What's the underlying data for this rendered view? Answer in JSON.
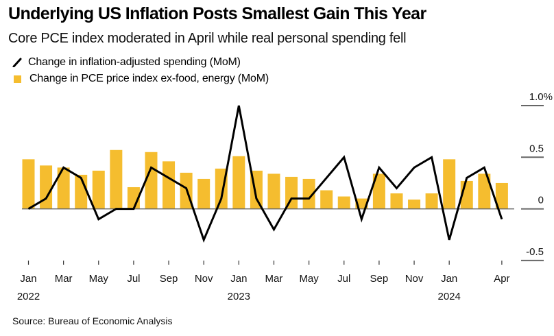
{
  "header": {
    "title": "Underlying US Inflation Posts Smallest Gain This Year",
    "subtitle": "Core PCE index moderated in April while real personal spending fell"
  },
  "legend": [
    {
      "label": "Change in inflation-adjusted spending (MoM)",
      "icon": "line-slash-icon",
      "color": "#000000"
    },
    {
      "label": "Change in PCE price index ex-food, energy (MoM)",
      "icon": "square-icon",
      "color": "#F5BD2F"
    }
  ],
  "footer": {
    "source": "Source: Bureau of Economic Analysis"
  },
  "colors": {
    "bar": "#F5BD2F",
    "line": "#000000",
    "grid": "#666666",
    "text": "#000000"
  },
  "chart_data": {
    "type": "bar+line",
    "title": "Underlying US Inflation Posts Smallest Gain This Year",
    "subtitle": "Core PCE index moderated in April while real personal spending fell",
    "xlabel": "",
    "ylabel": "",
    "ylim": [
      -0.5,
      1.0
    ],
    "y_ticks": [
      {
        "value": 1.0,
        "label": "1.0%"
      },
      {
        "value": 0.5,
        "label": "0.5"
      },
      {
        "value": 0,
        "label": "0"
      },
      {
        "value": -0.5,
        "label": "-0.5"
      }
    ],
    "y_axis_position": "right",
    "grid": false,
    "legend_position": "top-left",
    "categories": [
      "Jan 2022",
      "Feb 2022",
      "Mar 2022",
      "Apr 2022",
      "May 2022",
      "Jun 2022",
      "Jul 2022",
      "Aug 2022",
      "Sep 2022",
      "Oct 2022",
      "Nov 2022",
      "Dec 2022",
      "Jan 2023",
      "Feb 2023",
      "Mar 2023",
      "Apr 2023",
      "May 2023",
      "Jun 2023",
      "Jul 2023",
      "Aug 2023",
      "Sep 2023",
      "Oct 2023",
      "Nov 2023",
      "Dec 2023",
      "Jan 2024",
      "Feb 2024",
      "Mar 2024",
      "Apr 2024"
    ],
    "x_ticks": [
      {
        "index": 0,
        "label": "Jan",
        "sublabel": "2022"
      },
      {
        "index": 2,
        "label": "Mar",
        "sublabel": ""
      },
      {
        "index": 4,
        "label": "May",
        "sublabel": ""
      },
      {
        "index": 6,
        "label": "Jul",
        "sublabel": ""
      },
      {
        "index": 8,
        "label": "Sep",
        "sublabel": ""
      },
      {
        "index": 10,
        "label": "Nov",
        "sublabel": ""
      },
      {
        "index": 12,
        "label": "Jan",
        "sublabel": "2023"
      },
      {
        "index": 14,
        "label": "Mar",
        "sublabel": ""
      },
      {
        "index": 16,
        "label": "May",
        "sublabel": ""
      },
      {
        "index": 18,
        "label": "Jul",
        "sublabel": ""
      },
      {
        "index": 20,
        "label": "Sep",
        "sublabel": ""
      },
      {
        "index": 22,
        "label": "Nov",
        "sublabel": ""
      },
      {
        "index": 24,
        "label": "Jan",
        "sublabel": "2024"
      },
      {
        "index": 27,
        "label": "Apr",
        "sublabel": ""
      }
    ],
    "series": [
      {
        "name": "Change in PCE price index ex-food, energy (MoM)",
        "type": "bar",
        "values": [
          0.48,
          0.42,
          0.4,
          0.33,
          0.37,
          0.57,
          0.21,
          0.55,
          0.46,
          0.35,
          0.29,
          0.39,
          0.51,
          0.37,
          0.34,
          0.31,
          0.29,
          0.18,
          0.12,
          0.1,
          0.34,
          0.15,
          0.09,
          0.15,
          0.48,
          0.27,
          0.34,
          0.25
        ]
      },
      {
        "name": "Change in inflation-adjusted spending (MoM)",
        "type": "line",
        "values": [
          0.0,
          0.1,
          0.4,
          0.3,
          -0.1,
          0.0,
          0.0,
          0.4,
          0.3,
          0.2,
          -0.3,
          0.1,
          1.0,
          0.1,
          -0.2,
          0.1,
          0.1,
          0.3,
          0.5,
          -0.1,
          0.4,
          0.2,
          0.4,
          0.5,
          -0.3,
          0.3,
          0.4,
          -0.1
        ]
      }
    ]
  }
}
